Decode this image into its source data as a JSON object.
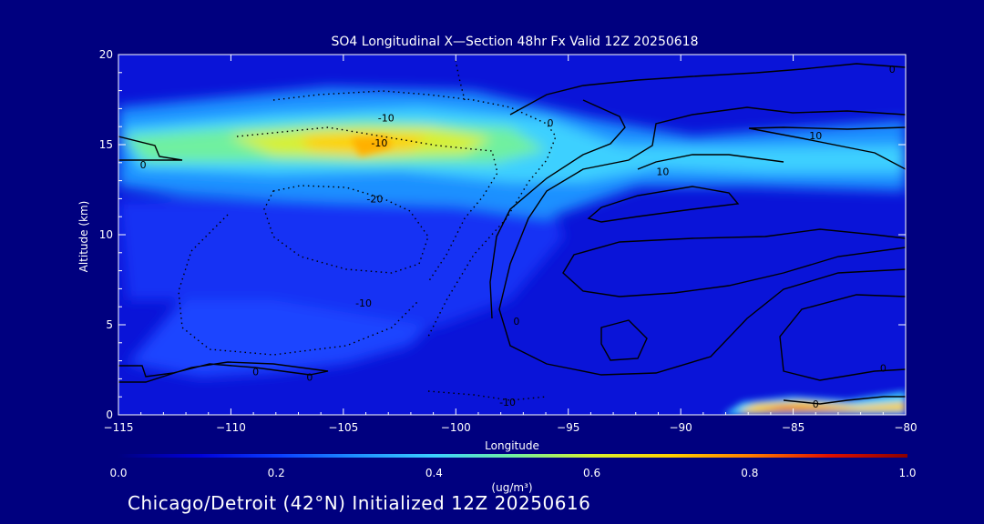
{
  "chart_data": {
    "type": "heatmap",
    "title": "SO4 Longitudinal X—Section 48hr  Fx Valid 12Z 20250618",
    "xlabel": "Longitude",
    "ylabel": "Altitude (km)",
    "xlim": [
      -115,
      -80
    ],
    "ylim": [
      0,
      20
    ],
    "x_ticks": [
      -115,
      -110,
      -105,
      -100,
      -95,
      -90,
      -85,
      -80
    ],
    "x_tick_labels": [
      "−115",
      "−110",
      "−105",
      "−100",
      "−95",
      "−90",
      "−85",
      "−80"
    ],
    "y_ticks": [
      0,
      5,
      10,
      15,
      20
    ],
    "y_tick_labels": [
      "0",
      "5",
      "10",
      "15",
      "20"
    ],
    "colorbar": {
      "min": 0.0,
      "max": 1.0,
      "tick_values": [
        0.0,
        0.2,
        0.4,
        0.6,
        0.8,
        1.0
      ],
      "tick_labels": [
        "0.0",
        "0.2",
        "0.4",
        "0.6",
        "0.8",
        "1.0"
      ],
      "unit_label": "(ug/m³)",
      "colors": [
        "#00007f",
        "#0000d8",
        "#0a3cff",
        "#1e90ff",
        "#3cd0ff",
        "#70f0a0",
        "#d8f030",
        "#ffd000",
        "#ff7f00",
        "#e01000",
        "#8b0000"
      ]
    },
    "concentration_features": [
      {
        "feature": "background",
        "lon": [
          -115,
          -80
        ],
        "alt": [
          0,
          20
        ],
        "value": 0.08
      },
      {
        "feature": "upper layer",
        "lon": [
          -115,
          -80
        ],
        "alt": [
          12.8,
          16.8
        ],
        "value": 0.25
      },
      {
        "feature": "upper layer core",
        "lon": [
          -113,
          -97
        ],
        "alt": [
          13.8,
          15.8
        ],
        "value": 0.45
      },
      {
        "feature": "upper layer maximum",
        "lon": [
          -106,
          -102
        ],
        "alt": [
          14.2,
          15.3
        ],
        "value": 0.62
      },
      {
        "feature": "surface plume",
        "lon": [
          -88,
          -80
        ],
        "alt": [
          0,
          0.8
        ],
        "value": 0.85
      },
      {
        "feature": "lower tongue",
        "lon": [
          -112,
          -103
        ],
        "alt": [
          2,
          6
        ],
        "value": 0.2
      }
    ],
    "contour_labels": [
      {
        "text": "-10",
        "lon": -103.1,
        "alt": 16.5
      },
      {
        "text": "-10",
        "lon": -103.4,
        "alt": 15.1
      },
      {
        "text": "-20",
        "lon": -103.6,
        "alt": 12.0
      },
      {
        "text": "-10",
        "lon": -104.1,
        "alt": 6.2
      },
      {
        "text": "0",
        "lon": -113.9,
        "alt": 13.9
      },
      {
        "text": "0",
        "lon": -108.9,
        "alt": 2.4
      },
      {
        "text": "0",
        "lon": -106.5,
        "alt": 2.1
      },
      {
        "text": "-10",
        "lon": -97.7,
        "alt": 0.7
      },
      {
        "text": "0",
        "lon": -95.8,
        "alt": 16.2
      },
      {
        "text": "0",
        "lon": -80.6,
        "alt": 19.2
      },
      {
        "text": "10",
        "lon": -84.0,
        "alt": 15.5
      },
      {
        "text": "10",
        "lon": -90.8,
        "alt": 13.5
      },
      {
        "text": "0",
        "lon": -97.3,
        "alt": 5.2
      },
      {
        "text": "0",
        "lon": -81.0,
        "alt": 2.6
      },
      {
        "text": "0",
        "lon": -84.0,
        "alt": 0.6
      }
    ]
  },
  "footer": {
    "location": "Chicago/Detroit (42°N) Initialized 12Z 20250616"
  }
}
